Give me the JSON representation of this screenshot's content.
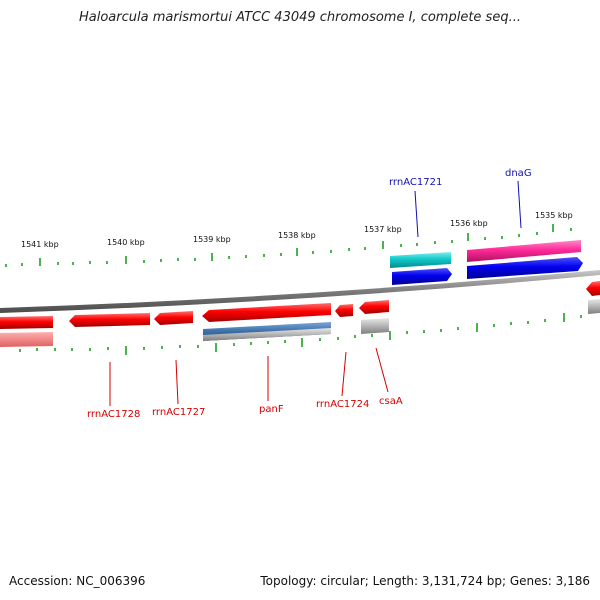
{
  "title": "Haloarcula marismortui ATCC 43049 chromosome I, complete seq...",
  "footer": {
    "accession": "Accession: NC_006396",
    "summary": "Topology: circular; Length: 3,131,724 bp; Genes: 3,186"
  },
  "scale_labels": [
    "1541 kbp",
    "1540 kbp",
    "1539 kbp",
    "1538 kbp",
    "1537 kbp",
    "1536 kbp",
    "1535 kbp"
  ],
  "gene_labels": {
    "rrnAC1728": "rrnAC1728",
    "rrnAC1727": "rrnAC1727",
    "panF": "panF",
    "rrnAC1724": "rrnAC1724",
    "csaA": "csaA",
    "rrnAC1721": "rrnAC1721",
    "dnaG": "dnaG"
  },
  "colors": {
    "forward_cds": "#0000e8",
    "reverse_cds": "#e80000",
    "rna": "#10c8c8",
    "highlight": "#ff2a9a",
    "backbone": "#808080"
  }
}
